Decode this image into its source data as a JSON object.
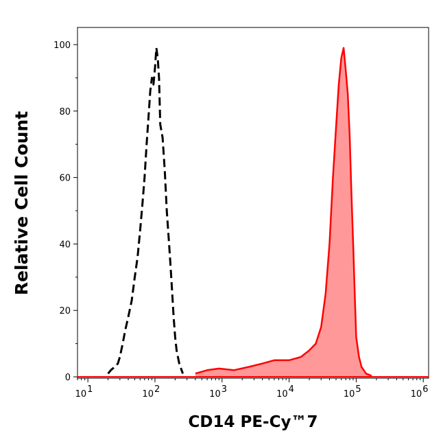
{
  "chart_data": {
    "type": "area",
    "title": "",
    "xlabel": "CD14 PE-Cy™7",
    "ylabel": "Relative Cell Count",
    "x_scale": "log",
    "xlim": [
      7,
      1200000
    ],
    "ylim": [
      0,
      100
    ],
    "x_ticks": [
      {
        "value": 10,
        "base": "10",
        "exp": "1"
      },
      {
        "value": 100,
        "base": "10",
        "exp": "2"
      },
      {
        "value": 1000,
        "base": "10",
        "exp": "3"
      },
      {
        "value": 10000,
        "base": "10",
        "exp": "4"
      },
      {
        "value": 100000,
        "base": "10",
        "exp": "5"
      },
      {
        "value": 1000000,
        "base": "10",
        "exp": "6"
      }
    ],
    "y_ticks": [
      {
        "value": 0,
        "label": "0"
      },
      {
        "value": 20,
        "label": "20"
      },
      {
        "value": 40,
        "label": "40"
      },
      {
        "value": 60,
        "label": "60"
      },
      {
        "value": 80,
        "label": "80"
      },
      {
        "value": 100,
        "label": "100"
      }
    ],
    "grid": false,
    "legend": "none",
    "series": [
      {
        "style": "dashed",
        "color": "#000000",
        "filled": false,
        "x": [
          20,
          22,
          25,
          28,
          30,
          33,
          36,
          40,
          45,
          50,
          55,
          60,
          65,
          70,
          75,
          80,
          85,
          90,
          95,
          100,
          105,
          110,
          115,
          120,
          130,
          140,
          150,
          160,
          170,
          180,
          190,
          200,
          210,
          230,
          260
        ],
        "y": [
          1,
          2,
          3,
          4,
          6,
          10,
          14,
          18,
          23,
          30,
          36,
          44,
          52,
          60,
          70,
          78,
          86,
          90,
          88,
          93,
          99,
          96,
          90,
          76,
          72,
          62,
          50,
          42,
          34,
          26,
          18,
          12,
          8,
          4,
          1
        ]
      },
      {
        "style": "solid",
        "color": "#ff0000",
        "fill": "#ff9999",
        "filled": true,
        "x": [
          400,
          600,
          900,
          1500,
          2500,
          4000,
          6000,
          10000,
          15000,
          20000,
          25000,
          30000,
          35000,
          40000,
          45000,
          50000,
          55000,
          60000,
          65000,
          70000,
          75000,
          80000,
          85000,
          90000,
          95000,
          100000,
          110000,
          120000,
          140000,
          170000
        ],
        "y": [
          1,
          2,
          2.5,
          2,
          3,
          4,
          5,
          5,
          6,
          8,
          10,
          15,
          25,
          40,
          60,
          75,
          88,
          96,
          99,
          92,
          85,
          72,
          55,
          40,
          25,
          12,
          6,
          3,
          1,
          0.3
        ]
      }
    ]
  }
}
